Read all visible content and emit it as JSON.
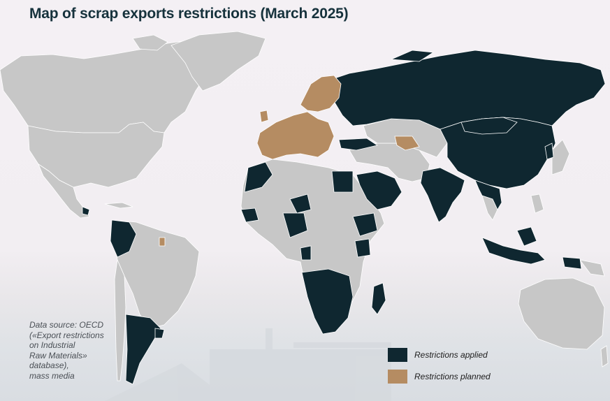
{
  "title": "Map of scrap exports restrictions (March 2025)",
  "source_lines": [
    "Data source: OECD",
    "(«Export restrictions",
    "on Industrial",
    "Raw Materials»",
    "database),",
    "mass media"
  ],
  "legend": [
    {
      "label": "Restrictions applied",
      "color": "#0f2730"
    },
    {
      "label": "Restrictions planned",
      "color": "#b58c62"
    }
  ],
  "colors": {
    "no_restriction": "#c7c7c7",
    "applied": "#0f2730",
    "planned": "#b58c62",
    "border": "#ffffff"
  }
}
